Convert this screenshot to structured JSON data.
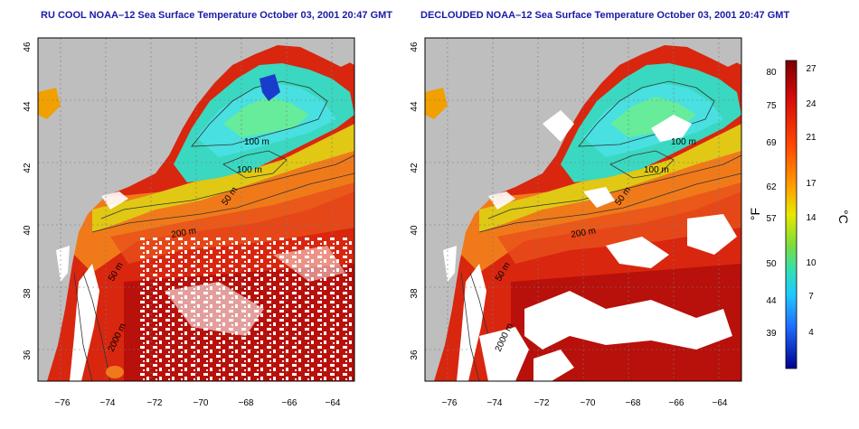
{
  "panels": [
    {
      "title": "RU COOL NOAA–12 Sea Surface Temperature October 03, 2001 20:47 GMT",
      "clouds": "white speckle cloud mask over southern warm water",
      "contour_labels": [
        "100 m",
        "100 m",
        "50 m",
        "200 m",
        "50 m",
        "2000 m"
      ]
    },
    {
      "title": "DECLOUDED NOAA–12 Sea Surface Temperature October 03, 2001 20:47 GMT",
      "clouds": "large white cloud patches over warm water",
      "contour_labels": [
        "100 m",
        "100 m",
        "50 m",
        "200 m",
        "50 m",
        "2000 m"
      ]
    }
  ],
  "axes": {
    "lat_ticks": [
      "46",
      "44",
      "42",
      "40",
      "38",
      "36"
    ],
    "lon_ticks": [
      "−76",
      "−74",
      "−72",
      "−70",
      "−68",
      "−66",
      "−64"
    ],
    "lon_range": [
      -77,
      -63
    ],
    "lat_range": [
      35,
      46
    ]
  },
  "colorbar": {
    "fahrenheit_ticks": [
      "80",
      "75",
      "69",
      "62",
      "57",
      "50",
      "44",
      "39"
    ],
    "celsius_ticks": [
      "27",
      "24",
      "21",
      "17",
      "14",
      "10",
      "7",
      "4"
    ],
    "fahrenheit_unit": "°F",
    "celsius_unit": "°C"
  },
  "colors": {
    "title": "#1a1aa8",
    "land": "#bebebe",
    "cloud": "#ffffff",
    "warm": "#d42a0e",
    "cold": "#2aa0e8"
  }
}
